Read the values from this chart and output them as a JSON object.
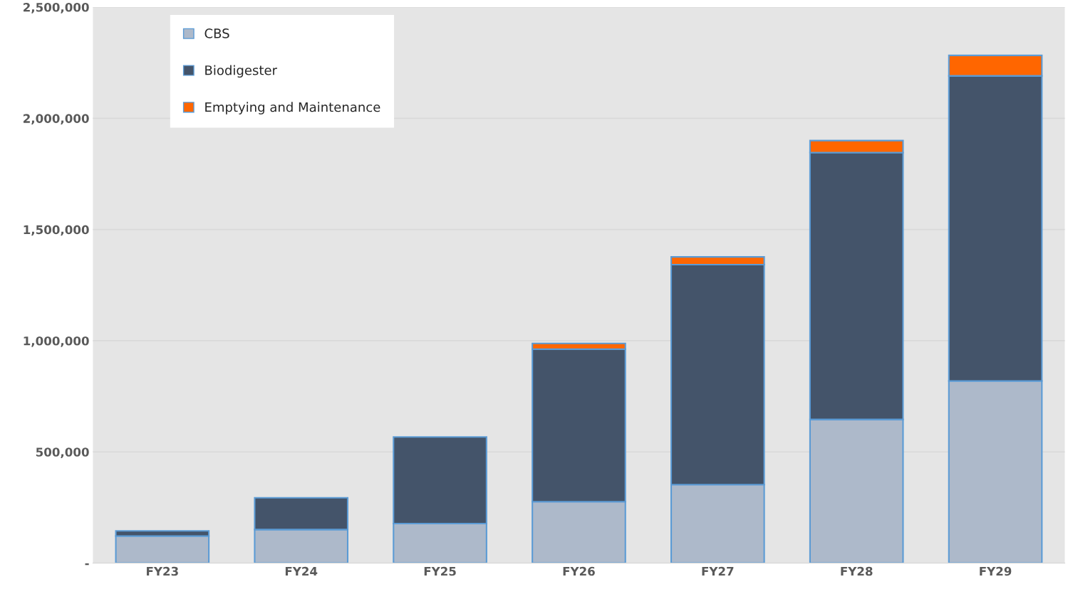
{
  "chart_data": {
    "type": "bar",
    "stacked": true,
    "categories": [
      "FY23",
      "FY24",
      "FY25",
      "FY26",
      "FY27",
      "FY28",
      "FY29"
    ],
    "series": [
      {
        "name": "CBS",
        "color": "#adb9ca",
        "values": [
          122000,
          151000,
          178000,
          276000,
          353000,
          646000,
          819000
        ]
      },
      {
        "name": "Biodigester",
        "color": "#44546a",
        "values": [
          23000,
          143000,
          389000,
          686000,
          989000,
          1200000,
          1372000
        ]
      },
      {
        "name": "Emptying and Maintenance",
        "color": "#ff6600",
        "values": [
          null,
          null,
          null,
          26000,
          35000,
          54000,
          92000
        ]
      }
    ],
    "ylim": [
      0,
      2500000
    ],
    "yticks": [
      {
        "value": 0,
        "label": "-"
      },
      {
        "value": 500000,
        "label": "500,000"
      },
      {
        "value": 1000000,
        "label": "1,000,000"
      },
      {
        "value": 1500000,
        "label": "1,500,000"
      },
      {
        "value": 2000000,
        "label": "2,000,000"
      },
      {
        "value": 2500000,
        "label": "2,500,000"
      }
    ],
    "grid": "y",
    "legend": "top left"
  }
}
